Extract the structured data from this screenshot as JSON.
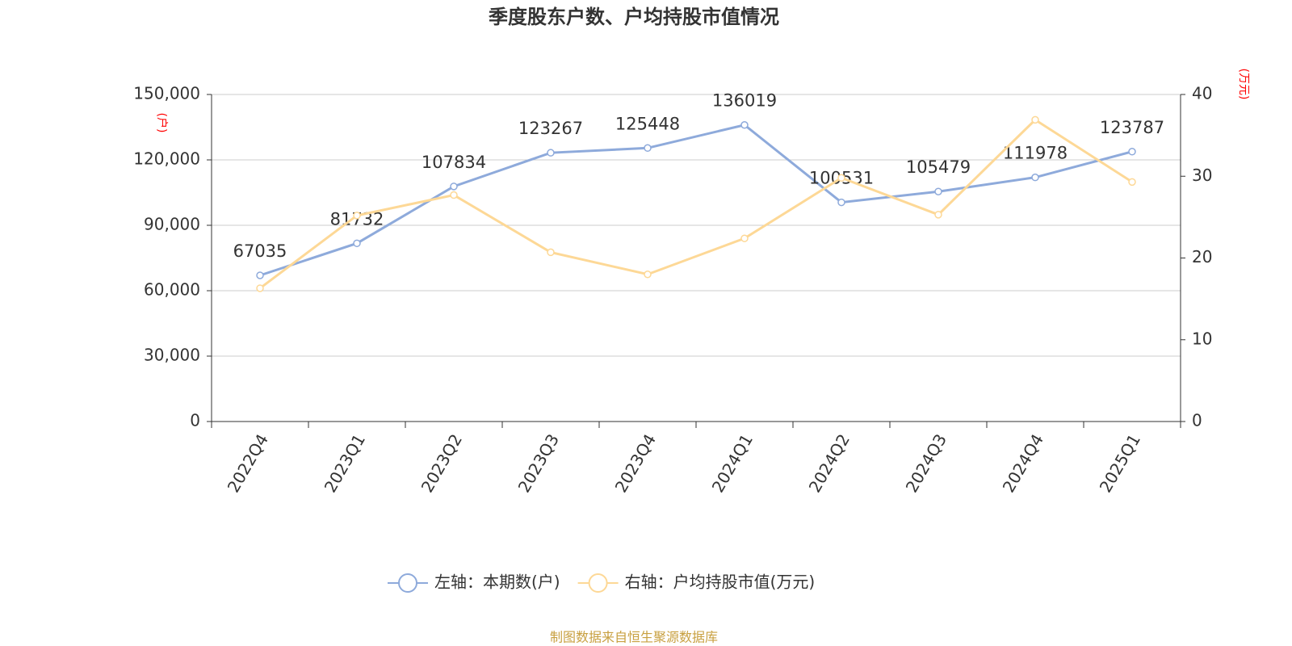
{
  "chart_data": {
    "type": "line",
    "title": "季度股东户数、户均持股市值情况",
    "y_label": "(户)",
    "y2_label": "(万元)",
    "source": "制图数据来自恒生聚源数据库",
    "categories": [
      "2022Q4",
      "2023Q1",
      "2023Q2",
      "2023Q3",
      "2023Q4",
      "2024Q1",
      "2024Q2",
      "2024Q3",
      "2024Q4",
      "2025Q1"
    ],
    "series": [
      {
        "name": "左轴：本期数(户)",
        "color": "#8eaadb",
        "axis": "y",
        "show_labels": true,
        "values": [
          67035,
          81732,
          107834,
          123267,
          125448,
          136019,
          100531,
          105479,
          111978,
          123787
        ]
      },
      {
        "name": "右轴：户均持股市值(万元)",
        "color": "#fdd896",
        "axis": "y2",
        "show_labels": false,
        "values": [
          16.3,
          25.2,
          27.7,
          20.7,
          18.0,
          22.4,
          29.8,
          25.3,
          36.9,
          29.3
        ]
      }
    ],
    "ylim": [
      0,
      150000
    ],
    "yticks": [
      0,
      {
        "value": 30000,
        "label": "30,000"
      },
      {
        "value": 60000,
        "label": "60,000"
      },
      {
        "value": 90000,
        "label": "90,000"
      },
      {
        "value": 120000,
        "label": "120,000"
      },
      {
        "value": 150000,
        "label": "150,000"
      }
    ],
    "y2lim": [
      0,
      40
    ],
    "y2ticks": [
      0,
      10,
      20,
      30,
      40
    ],
    "grid": true,
    "legend": "bottom"
  }
}
